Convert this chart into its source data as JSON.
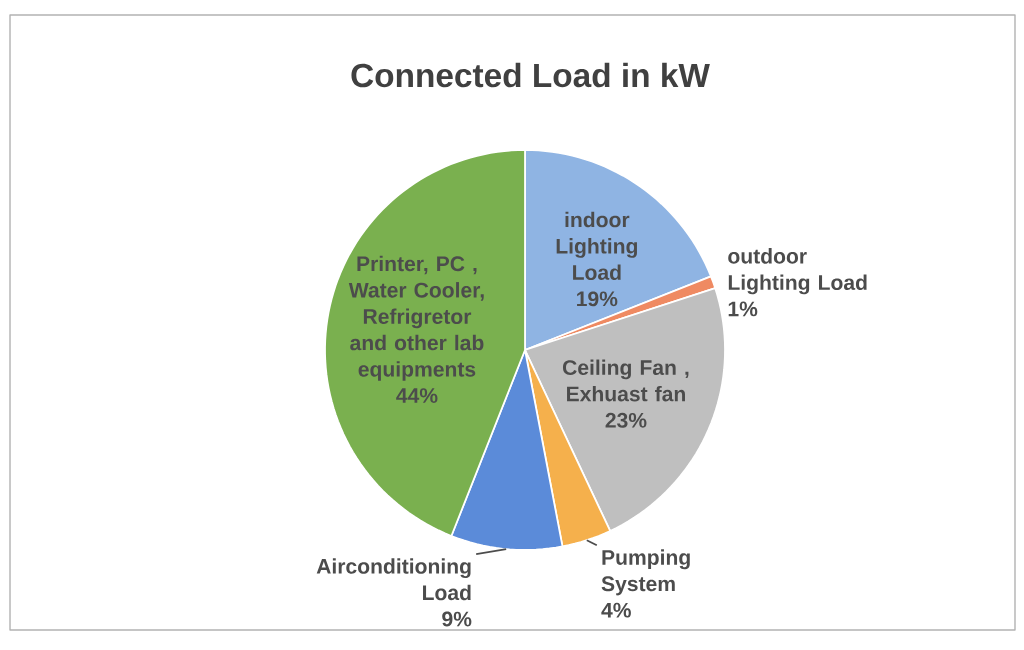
{
  "chart_data": {
    "type": "pie",
    "title": "Connected  Load  in kW",
    "categories": [
      "indoor Lighting Load",
      "outdoor Lighting Load",
      "Ceiling Fan , Exhuast fan",
      "Pumping System",
      "Airconditioning Load",
      "Printer, PC , Water Cooler, Refrigretor and other lab equipments"
    ],
    "values": [
      19,
      1,
      23,
      4,
      9,
      44
    ],
    "value_labels": [
      "19%",
      "1%",
      "23%",
      "4%",
      "9%",
      "44%"
    ],
    "colors": [
      "#8fb4e3",
      "#ef8a62",
      "#bfbfbf",
      "#f5b04c",
      "#5b8bd9",
      "#7ab04f"
    ]
  }
}
